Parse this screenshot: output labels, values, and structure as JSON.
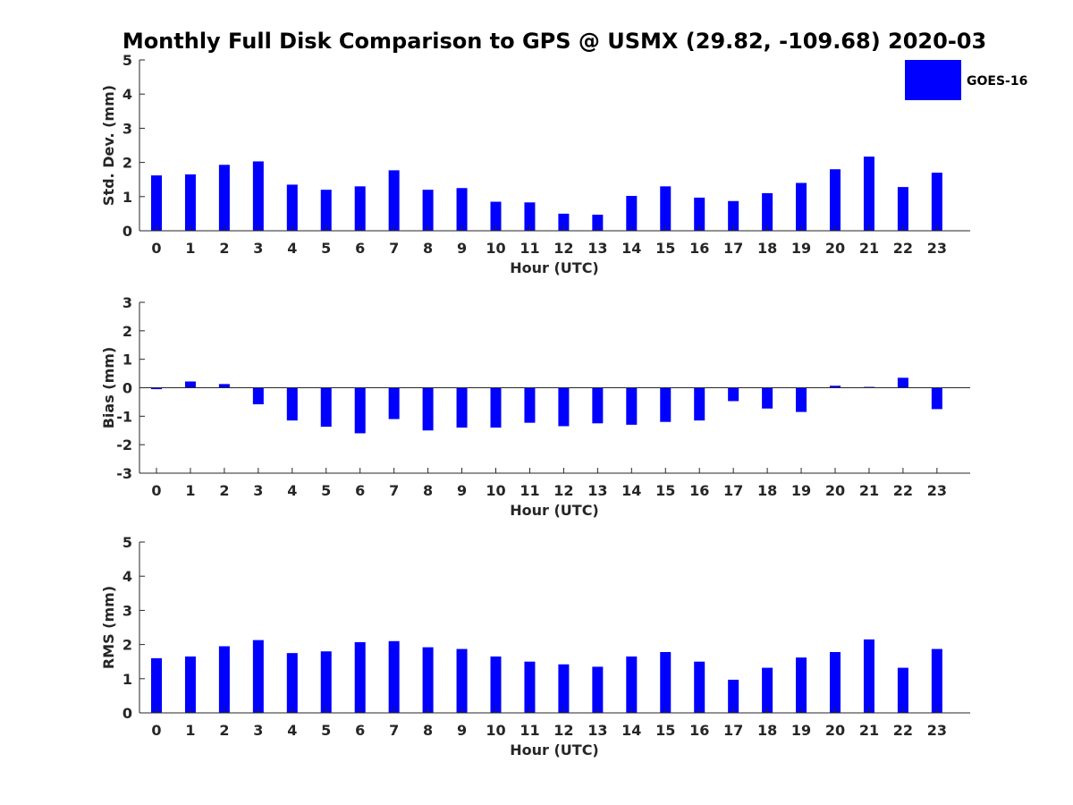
{
  "title": "Monthly Full Disk Comparison to GPS @ USMX (29.82, -109.68) 2020-03",
  "legend": {
    "label": "GOES-16",
    "placement": "top-right"
  },
  "colors": {
    "bar": "#0000ff",
    "axis": "#262626"
  },
  "chart_data": [
    {
      "type": "bar",
      "ylabel": "Std. Dev. (mm)",
      "xlabel": "Hour (UTC)",
      "ylim": [
        0,
        5
      ],
      "yticks": [
        0,
        1,
        2,
        3,
        4,
        5
      ],
      "categories": [
        "0",
        "1",
        "2",
        "3",
        "4",
        "5",
        "6",
        "7",
        "8",
        "9",
        "10",
        "11",
        "12",
        "13",
        "14",
        "15",
        "16",
        "17",
        "18",
        "19",
        "20",
        "21",
        "22",
        "23"
      ],
      "series": [
        {
          "name": "GOES-16",
          "values": [
            1.62,
            1.65,
            1.93,
            2.03,
            1.35,
            1.2,
            1.3,
            1.77,
            1.2,
            1.25,
            0.85,
            0.83,
            0.5,
            0.47,
            1.02,
            1.3,
            0.97,
            0.87,
            1.1,
            1.4,
            1.8,
            2.17,
            1.28,
            1.7
          ]
        }
      ]
    },
    {
      "type": "bar",
      "ylabel": "Bias (mm)",
      "xlabel": "Hour (UTC)",
      "ylim": [
        -3,
        3
      ],
      "yticks": [
        -3,
        -2,
        -1,
        0,
        1,
        2,
        3
      ],
      "categories": [
        "0",
        "1",
        "2",
        "3",
        "4",
        "5",
        "6",
        "7",
        "8",
        "9",
        "10",
        "11",
        "12",
        "13",
        "14",
        "15",
        "16",
        "17",
        "18",
        "19",
        "20",
        "21",
        "22",
        "23"
      ],
      "series": [
        {
          "name": "GOES-16",
          "values": [
            -0.05,
            0.22,
            0.13,
            -0.58,
            -1.15,
            -1.37,
            -1.6,
            -1.1,
            -1.5,
            -1.4,
            -1.4,
            -1.23,
            -1.35,
            -1.25,
            -1.3,
            -1.2,
            -1.15,
            -0.47,
            -0.73,
            -0.85,
            0.07,
            0.03,
            0.35,
            -0.75
          ]
        }
      ]
    },
    {
      "type": "bar",
      "ylabel": "RMS (mm)",
      "xlabel": "Hour (UTC)",
      "ylim": [
        0,
        5
      ],
      "yticks": [
        0,
        1,
        2,
        3,
        4,
        5
      ],
      "categories": [
        "0",
        "1",
        "2",
        "3",
        "4",
        "5",
        "6",
        "7",
        "8",
        "9",
        "10",
        "11",
        "12",
        "13",
        "14",
        "15",
        "16",
        "17",
        "18",
        "19",
        "20",
        "21",
        "22",
        "23"
      ],
      "series": [
        {
          "name": "GOES-16",
          "values": [
            1.6,
            1.65,
            1.95,
            2.13,
            1.75,
            1.8,
            2.07,
            2.1,
            1.92,
            1.87,
            1.65,
            1.5,
            1.42,
            1.35,
            1.65,
            1.78,
            1.5,
            0.97,
            1.32,
            1.62,
            1.78,
            2.15,
            1.32,
            1.87
          ]
        }
      ]
    }
  ]
}
